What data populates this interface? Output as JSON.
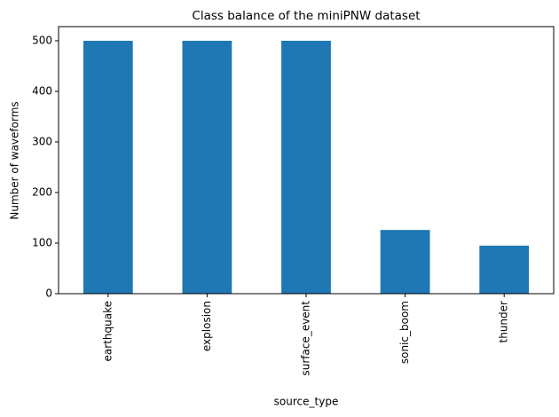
{
  "chart_data": {
    "type": "bar",
    "title": "Class balance of the miniPNW dataset",
    "xlabel": "source_type",
    "ylabel": "Number of waveforms",
    "categories": [
      "earthquake",
      "explosion",
      "surface_event",
      "sonic_boom",
      "thunder"
    ],
    "values": [
      500,
      500,
      500,
      126,
      95
    ],
    "color": "#1f77b4",
    "ylim": [
      0,
      528
    ],
    "yticks": [
      0,
      100,
      200,
      300,
      400,
      500
    ],
    "grid": false
  }
}
